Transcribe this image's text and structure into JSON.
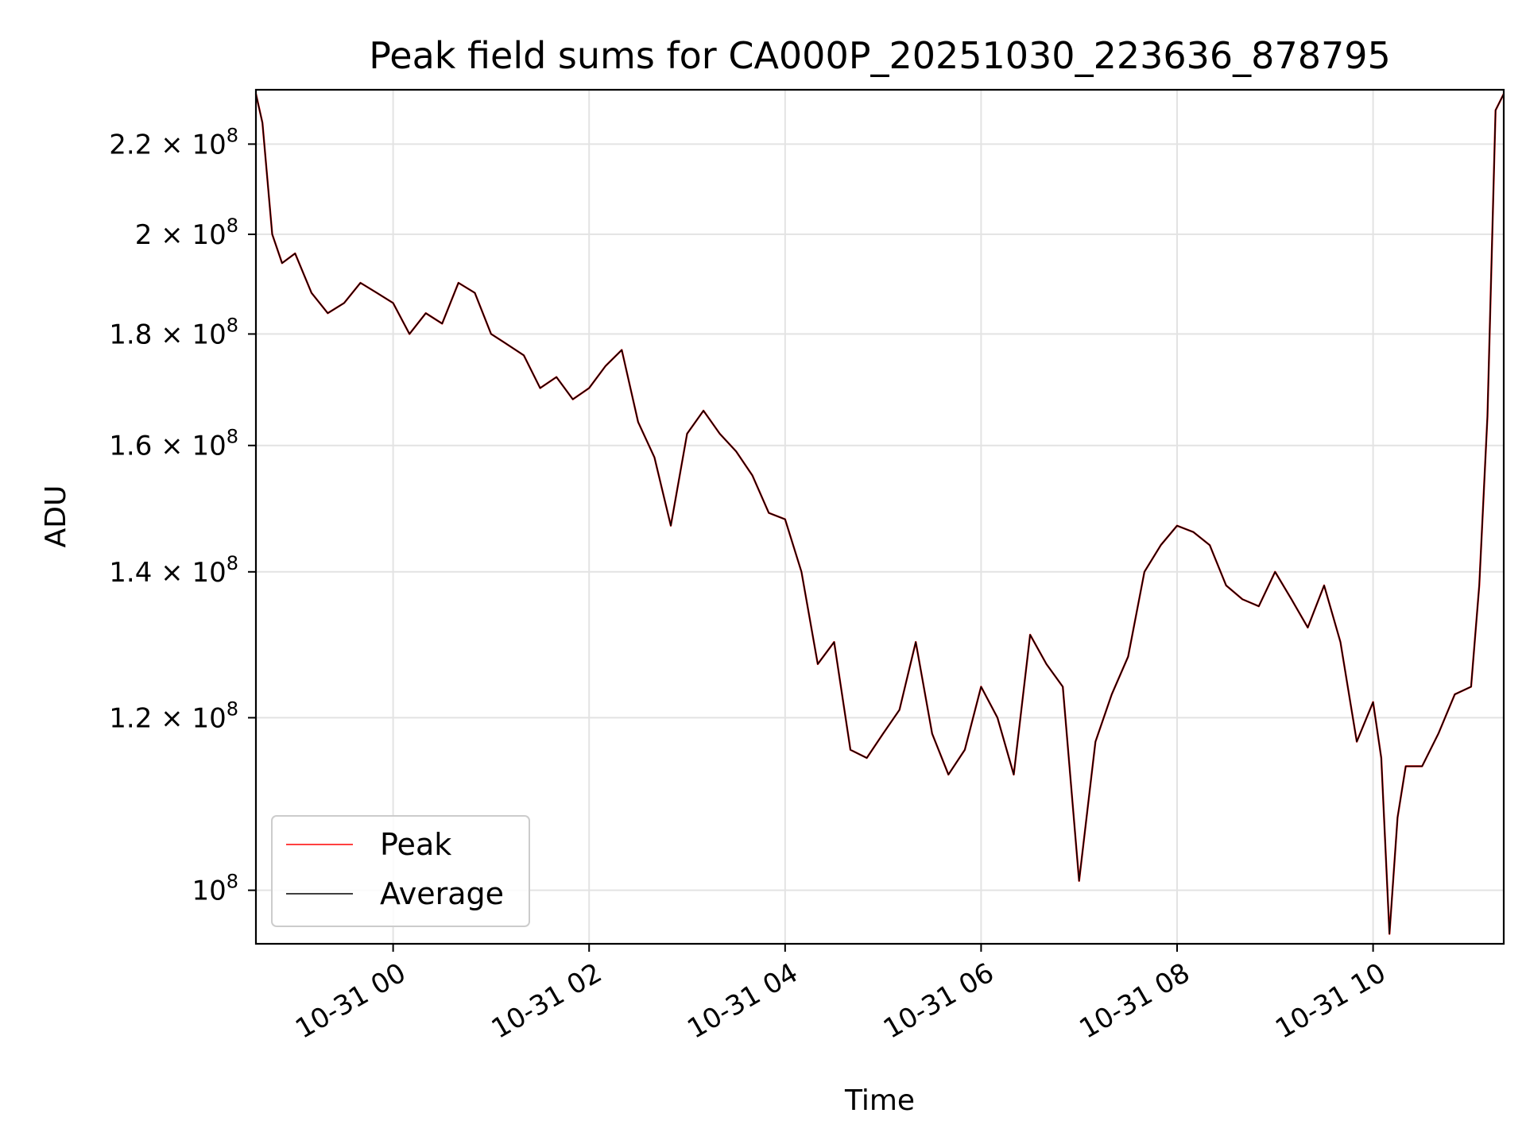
{
  "chart_data": {
    "type": "line",
    "title": "Peak field sums for CA000P_20251030_223636_878795",
    "xlabel": "Time",
    "ylabel": "ADU",
    "yscale": "log",
    "grid": true,
    "legend_position": "lower-left",
    "xlim": [
      "2025-10-30 22:36",
      "2025-10-31 11:20"
    ],
    "ylim": [
      94500000,
      233000000
    ],
    "x_ticks": [
      {
        "time": "2025-10-31 00:00",
        "label": "10-31 00"
      },
      {
        "time": "2025-10-31 02:00",
        "label": "10-31 02"
      },
      {
        "time": "2025-10-31 04:00",
        "label": "10-31 04"
      },
      {
        "time": "2025-10-31 06:00",
        "label": "10-31 06"
      },
      {
        "time": "2025-10-31 08:00",
        "label": "10-31 08"
      },
      {
        "time": "2025-10-31 10:00",
        "label": "10-31 10"
      }
    ],
    "y_ticks": [
      {
        "value": 100000000,
        "mantissa": "",
        "exponent": "8"
      },
      {
        "value": 120000000,
        "mantissa": "1.2",
        "exponent": "8"
      },
      {
        "value": 140000000,
        "mantissa": "1.4",
        "exponent": "8"
      },
      {
        "value": 160000000,
        "mantissa": "1.6",
        "exponent": "8"
      },
      {
        "value": 180000000,
        "mantissa": "1.8",
        "exponent": "8"
      },
      {
        "value": 200000000,
        "mantissa": "2",
        "exponent": "8"
      },
      {
        "value": 220000000,
        "mantissa": "2.2",
        "exponent": "8"
      }
    ],
    "x": [
      "2025-10-30 22:36",
      "2025-10-30 22:40",
      "2025-10-30 22:46",
      "2025-10-30 22:52",
      "2025-10-30 23:00",
      "2025-10-30 23:10",
      "2025-10-30 23:20",
      "2025-10-30 23:30",
      "2025-10-30 23:40",
      "2025-10-30 23:50",
      "2025-10-31 00:00",
      "2025-10-31 00:10",
      "2025-10-31 00:20",
      "2025-10-31 00:30",
      "2025-10-31 00:40",
      "2025-10-31 00:50",
      "2025-10-31 01:00",
      "2025-10-31 01:10",
      "2025-10-31 01:20",
      "2025-10-31 01:30",
      "2025-10-31 01:40",
      "2025-10-31 01:50",
      "2025-10-31 02:00",
      "2025-10-31 02:10",
      "2025-10-31 02:20",
      "2025-10-31 02:30",
      "2025-10-31 02:40",
      "2025-10-31 02:50",
      "2025-10-31 03:00",
      "2025-10-31 03:10",
      "2025-10-31 03:20",
      "2025-10-31 03:30",
      "2025-10-31 03:40",
      "2025-10-31 03:50",
      "2025-10-31 04:00",
      "2025-10-31 04:10",
      "2025-10-31 04:20",
      "2025-10-31 04:30",
      "2025-10-31 04:40",
      "2025-10-31 04:50",
      "2025-10-31 05:00",
      "2025-10-31 05:10",
      "2025-10-31 05:20",
      "2025-10-31 05:30",
      "2025-10-31 05:40",
      "2025-10-31 05:50",
      "2025-10-31 06:00",
      "2025-10-31 06:10",
      "2025-10-31 06:20",
      "2025-10-31 06:30",
      "2025-10-31 06:40",
      "2025-10-31 06:50",
      "2025-10-31 07:00",
      "2025-10-31 07:10",
      "2025-10-31 07:20",
      "2025-10-31 07:30",
      "2025-10-31 07:40",
      "2025-10-31 07:50",
      "2025-10-31 08:00",
      "2025-10-31 08:10",
      "2025-10-31 08:20",
      "2025-10-31 08:30",
      "2025-10-31 08:40",
      "2025-10-31 08:50",
      "2025-10-31 09:00",
      "2025-10-31 09:10",
      "2025-10-31 09:20",
      "2025-10-31 09:30",
      "2025-10-31 09:40",
      "2025-10-31 09:50",
      "2025-10-31 10:00",
      "2025-10-31 10:05",
      "2025-10-31 10:10",
      "2025-10-31 10:15",
      "2025-10-31 10:20",
      "2025-10-31 10:30",
      "2025-10-31 10:40",
      "2025-10-31 10:50",
      "2025-10-31 11:00",
      "2025-10-31 11:05",
      "2025-10-31 11:10",
      "2025-10-31 11:15",
      "2025-10-31 11:20"
    ],
    "series": [
      {
        "name": "Peak",
        "color": "#ff0000",
        "values": [
          232000000,
          225000000,
          200000000,
          194000000,
          196000000,
          188000000,
          184000000,
          186000000,
          190000000,
          188000000,
          186000000,
          180000000,
          184000000,
          182000000,
          190000000,
          188000000,
          180000000,
          178000000,
          176000000,
          170000000,
          172000000,
          168000000,
          170000000,
          174000000,
          177000000,
          164000000,
          158000000,
          147000000,
          162000000,
          166000000,
          162000000,
          159000000,
          155000000,
          149000000,
          148000000,
          140000000,
          127000000,
          130000000,
          116000000,
          115000000,
          118000000,
          121000000,
          130000000,
          118000000,
          113000000,
          116000000,
          124000000,
          120000000,
          113000000,
          131000000,
          127000000,
          124000000,
          101000000,
          117000000,
          123000000,
          128000000,
          140000000,
          144000000,
          147000000,
          146000000,
          144000000,
          138000000,
          136000000,
          135000000,
          140000000,
          136000000,
          132000000,
          138000000,
          130000000,
          117000000,
          122000000,
          115000000,
          95500000,
          108000000,
          114000000,
          114000000,
          118000000,
          123000000,
          124000000,
          138000000,
          165000000,
          228000000,
          232000000
        ]
      },
      {
        "name": "Average",
        "color": "#000000",
        "values": [
          232000000,
          225000000,
          200000000,
          194000000,
          196000000,
          188000000,
          184000000,
          186000000,
          190000000,
          188000000,
          186000000,
          180000000,
          184000000,
          182000000,
          190000000,
          188000000,
          180000000,
          178000000,
          176000000,
          170000000,
          172000000,
          168000000,
          170000000,
          174000000,
          177000000,
          164000000,
          158000000,
          147000000,
          162000000,
          166000000,
          162000000,
          159000000,
          155000000,
          149000000,
          148000000,
          140000000,
          127000000,
          130000000,
          116000000,
          115000000,
          118000000,
          121000000,
          130000000,
          118000000,
          113000000,
          116000000,
          124000000,
          120000000,
          113000000,
          131000000,
          127000000,
          124000000,
          101000000,
          117000000,
          123000000,
          128000000,
          140000000,
          144000000,
          147000000,
          146000000,
          144000000,
          138000000,
          136000000,
          135000000,
          140000000,
          136000000,
          132000000,
          138000000,
          130000000,
          117000000,
          122000000,
          115000000,
          95500000,
          108000000,
          114000000,
          114000000,
          118000000,
          123000000,
          124000000,
          138000000,
          165000000,
          228000000,
          232000000
        ]
      }
    ]
  }
}
